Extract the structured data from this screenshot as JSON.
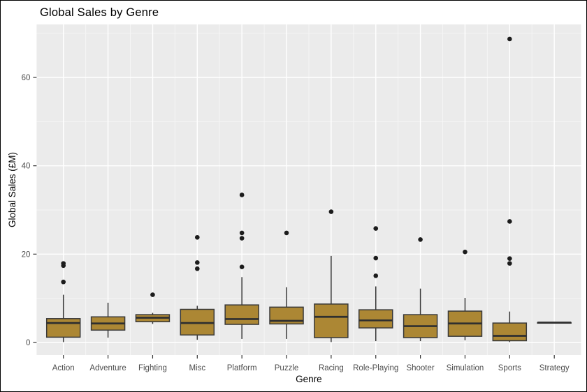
{
  "window": {
    "background": "#ffffff",
    "border_color": "#000000"
  },
  "chart_data": {
    "type": "boxplot",
    "title": "Global Sales by Genre",
    "xlabel": "Genre",
    "ylabel": "Global Sales (£M)",
    "y_ticks": [
      0,
      20,
      40,
      60
    ],
    "y_minor_gridlines": [
      10,
      30,
      50,
      70
    ],
    "ylim": [
      -2.8,
      72
    ],
    "grid": "on",
    "legend": "none",
    "style": {
      "panel_bg": "#ebebeb",
      "grid_major": "#ffffff",
      "grid_minor": "#f6f6f6",
      "box_fill": "#ac8734",
      "box_stroke": "#383838",
      "median_stroke": "#2f2f2f",
      "outlier_color": "#1c1c1c",
      "tick_color": "#333333",
      "axis_text_color": "#4d4d4d",
      "axis_title_color": "#000000"
    },
    "categories": [
      "Action",
      "Adventure",
      "Fighting",
      "Misc",
      "Platform",
      "Puzzle",
      "Racing",
      "Role-Playing",
      "Shooter",
      "Simulation",
      "Sports",
      "Strategy"
    ],
    "series": [
      {
        "category": "Action",
        "min": 0.1,
        "q1": 1.2,
        "median": 4.4,
        "q3": 5.4,
        "max": 10.8,
        "outliers": [
          17.9,
          17.4,
          13.7
        ]
      },
      {
        "category": "Adventure",
        "min": 1.1,
        "q1": 2.8,
        "median": 4.3,
        "q3": 5.8,
        "max": 9.0,
        "outliers": []
      },
      {
        "category": "Fighting",
        "min": 4.2,
        "q1": 4.7,
        "median": 5.6,
        "q3": 6.3,
        "max": 6.7,
        "outliers": [
          10.8
        ]
      },
      {
        "category": "Misc",
        "min": 0.6,
        "q1": 1.7,
        "median": 4.4,
        "q3": 7.5,
        "max": 8.3,
        "outliers": [
          23.8,
          18.1,
          16.7
        ]
      },
      {
        "category": "Platform",
        "min": 0.8,
        "q1": 4.1,
        "median": 5.3,
        "q3": 8.5,
        "max": 14.8,
        "outliers": [
          33.4,
          24.8,
          23.6,
          17.1
        ]
      },
      {
        "category": "Puzzle",
        "min": 0.8,
        "q1": 4.2,
        "median": 4.9,
        "q3": 8.0,
        "max": 12.5,
        "outliers": [
          24.8
        ]
      },
      {
        "category": "Racing",
        "min": 0.1,
        "q1": 1.1,
        "median": 5.8,
        "q3": 8.7,
        "max": 19.6,
        "outliers": [
          29.6
        ]
      },
      {
        "category": "Role-Playing",
        "min": 0.3,
        "q1": 3.3,
        "median": 5.0,
        "q3": 7.4,
        "max": 12.7,
        "outliers": [
          25.8,
          19.1,
          15.1
        ]
      },
      {
        "category": "Shooter",
        "min": 0.3,
        "q1": 1.1,
        "median": 3.7,
        "q3": 6.3,
        "max": 12.2,
        "outliers": [
          23.3
        ]
      },
      {
        "category": "Simulation",
        "min": 0.5,
        "q1": 1.4,
        "median": 4.3,
        "q3": 7.1,
        "max": 10.1,
        "outliers": [
          20.5
        ]
      },
      {
        "category": "Sports",
        "min": 0.1,
        "q1": 0.4,
        "median": 1.5,
        "q3": 4.4,
        "max": 7.0,
        "outliers": [
          68.7,
          27.4,
          19.0,
          17.9
        ]
      },
      {
        "category": "Strategy",
        "min": 4.5,
        "q1": 4.5,
        "median": 4.5,
        "q3": 4.5,
        "max": 4.5,
        "outliers": []
      }
    ]
  }
}
